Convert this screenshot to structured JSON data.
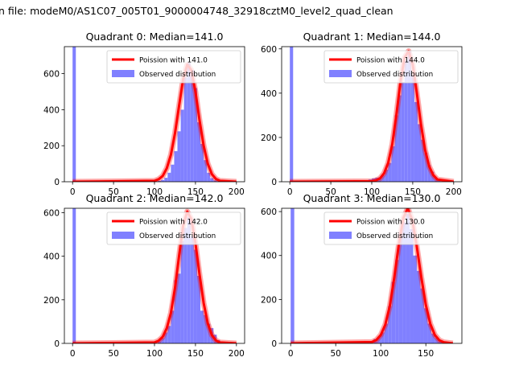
{
  "suptitle": "n file: modeM0/AS1C07_005T01_9000004748_32918cztM0_level2_quad_clean",
  "colors": {
    "observed": "#8080ff",
    "poisson": "#ff0000",
    "poisson_core": "#ff8080",
    "axis": "#000000",
    "legend_edge": "#cccccc"
  },
  "chart_data": [
    {
      "type": "bar",
      "title": "Quadrant 0: Median=141.0",
      "legend": [
        "Poission with 141.0",
        "Observed distribution"
      ],
      "legend_loc": "upper right",
      "median": 141,
      "xlim": [
        -10,
        210
      ],
      "ylim": [
        0,
        750
      ],
      "xticks": [
        0,
        50,
        100,
        150,
        200
      ],
      "yticks": [
        0,
        200,
        400,
        600
      ],
      "hist_bins": [
        [
          0,
          4,
          750
        ],
        [
          100,
          4,
          2
        ],
        [
          104,
          4,
          5
        ],
        [
          108,
          4,
          10
        ],
        [
          112,
          4,
          22
        ],
        [
          116,
          4,
          50
        ],
        [
          120,
          4,
          95
        ],
        [
          124,
          4,
          170
        ],
        [
          128,
          4,
          280
        ],
        [
          132,
          4,
          400
        ],
        [
          136,
          4,
          580
        ],
        [
          140,
          4,
          660
        ],
        [
          144,
          4,
          620
        ],
        [
          148,
          4,
          520
        ],
        [
          152,
          4,
          330
        ],
        [
          156,
          4,
          210
        ],
        [
          160,
          4,
          120
        ],
        [
          164,
          4,
          50
        ],
        [
          168,
          4,
          20
        ],
        [
          172,
          4,
          8
        ],
        [
          176,
          4,
          3
        ]
      ],
      "curve_x": [
        0,
        100,
        105,
        110,
        115,
        120,
        125,
        130,
        135,
        140,
        145,
        150,
        155,
        160,
        165,
        170,
        175,
        180,
        200
      ],
      "curve_y": [
        0,
        5,
        14,
        32,
        75,
        150,
        270,
        420,
        570,
        650,
        620,
        500,
        340,
        200,
        100,
        42,
        15,
        5,
        0
      ]
    },
    {
      "type": "bar",
      "title": "Quadrant 1: Median=144.0",
      "legend": [
        "Poission with 144.0",
        "Observed distribution"
      ],
      "legend_loc": "upper right",
      "median": 144,
      "xlim": [
        -10,
        210
      ],
      "ylim": [
        0,
        610
      ],
      "xticks": [
        0,
        50,
        100,
        150,
        200
      ],
      "yticks": [
        0,
        200,
        400,
        600
      ],
      "hist_bins": [
        [
          0,
          4,
          610
        ],
        [
          30,
          4,
          4
        ],
        [
          55,
          4,
          3
        ],
        [
          85,
          4,
          4
        ],
        [
          96,
          4,
          10
        ],
        [
          100,
          4,
          15
        ],
        [
          104,
          4,
          18
        ],
        [
          108,
          4,
          20
        ],
        [
          112,
          4,
          30
        ],
        [
          116,
          4,
          55
        ],
        [
          120,
          4,
          85
        ],
        [
          124,
          4,
          160
        ],
        [
          128,
          4,
          300
        ],
        [
          132,
          4,
          390
        ],
        [
          136,
          4,
          450
        ],
        [
          140,
          4,
          550
        ],
        [
          144,
          4,
          590
        ],
        [
          148,
          4,
          480
        ],
        [
          152,
          4,
          360
        ],
        [
          156,
          4,
          260
        ],
        [
          160,
          4,
          190
        ],
        [
          164,
          4,
          130
        ],
        [
          168,
          4,
          75
        ],
        [
          172,
          4,
          45
        ],
        [
          176,
          4,
          20
        ],
        [
          180,
          4,
          6
        ]
      ],
      "curve_x": [
        0,
        100,
        105,
        110,
        115,
        120,
        125,
        130,
        135,
        140,
        145,
        150,
        155,
        160,
        165,
        170,
        175,
        180,
        200
      ],
      "curve_y": [
        0,
        2,
        6,
        15,
        38,
        85,
        170,
        300,
        450,
        560,
        590,
        530,
        400,
        260,
        145,
        70,
        30,
        10,
        0
      ]
    },
    {
      "type": "bar",
      "title": "Quadrant 2: Median=142.0",
      "legend": [
        "Poission with 142.0",
        "Observed distribution"
      ],
      "legend_loc": "upper right",
      "median": 142,
      "xlim": [
        -10,
        210
      ],
      "ylim": [
        0,
        620
      ],
      "xticks": [
        0,
        50,
        100,
        150,
        200
      ],
      "yticks": [
        0,
        200,
        400,
        600
      ],
      "hist_bins": [
        [
          0,
          4,
          620
        ],
        [
          104,
          4,
          15
        ],
        [
          108,
          4,
          25
        ],
        [
          112,
          4,
          50
        ],
        [
          116,
          4,
          80
        ],
        [
          120,
          4,
          150
        ],
        [
          124,
          4,
          290
        ],
        [
          128,
          4,
          320
        ],
        [
          132,
          4,
          470
        ],
        [
          136,
          4,
          530
        ],
        [
          140,
          4,
          580
        ],
        [
          144,
          4,
          490
        ],
        [
          148,
          4,
          430
        ],
        [
          152,
          4,
          310
        ],
        [
          156,
          4,
          150
        ],
        [
          160,
          4,
          130
        ],
        [
          164,
          4,
          90
        ],
        [
          168,
          4,
          70
        ],
        [
          172,
          4,
          40
        ],
        [
          176,
          4,
          15
        ]
      ],
      "curve_x": [
        0,
        100,
        105,
        110,
        115,
        120,
        125,
        130,
        135,
        140,
        145,
        150,
        155,
        160,
        165,
        170,
        175,
        180,
        200
      ],
      "curve_y": [
        0,
        4,
        12,
        30,
        70,
        140,
        255,
        400,
        540,
        605,
        570,
        460,
        315,
        185,
        92,
        38,
        13,
        4,
        0
      ]
    },
    {
      "type": "bar",
      "title": "Quadrant 3: Median=130.0",
      "legend": [
        "Poission with 130.0",
        "Observed distribution"
      ],
      "legend_loc": "upper right",
      "median": 130,
      "xlim": [
        -10,
        190
      ],
      "ylim": [
        0,
        615
      ],
      "xticks": [
        0,
        50,
        100,
        150
      ],
      "yticks": [
        0,
        200,
        400,
        600
      ],
      "hist_bins": [
        [
          0,
          4,
          615
        ],
        [
          84,
          4,
          10
        ],
        [
          92,
          4,
          20
        ],
        [
          96,
          4,
          30
        ],
        [
          100,
          4,
          50
        ],
        [
          104,
          4,
          90
        ],
        [
          108,
          4,
          170
        ],
        [
          112,
          4,
          280
        ],
        [
          116,
          4,
          380
        ],
        [
          120,
          4,
          500
        ],
        [
          124,
          4,
          550
        ],
        [
          128,
          4,
          590
        ],
        [
          132,
          4,
          520
        ],
        [
          136,
          4,
          400
        ],
        [
          140,
          4,
          330
        ],
        [
          144,
          4,
          250
        ],
        [
          148,
          4,
          160
        ],
        [
          152,
          4,
          90
        ],
        [
          156,
          4,
          45
        ],
        [
          160,
          4,
          25
        ],
        [
          164,
          4,
          10
        ]
      ],
      "curve_x": [
        0,
        90,
        95,
        100,
        105,
        110,
        115,
        120,
        125,
        130,
        135,
        140,
        145,
        150,
        155,
        160,
        165,
        170,
        180
      ],
      "curve_y": [
        0,
        6,
        15,
        38,
        85,
        170,
        300,
        450,
        570,
        615,
        560,
        440,
        300,
        175,
        88,
        38,
        14,
        5,
        0
      ]
    }
  ]
}
